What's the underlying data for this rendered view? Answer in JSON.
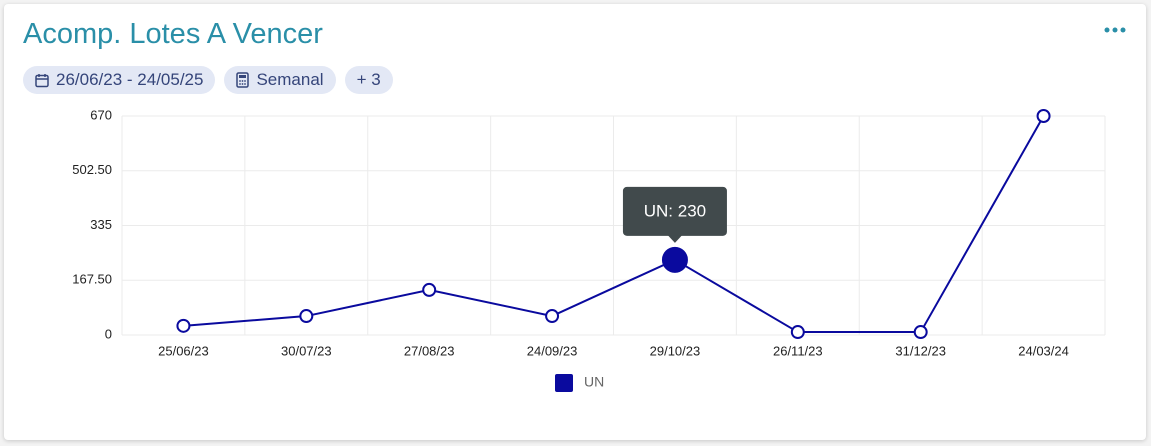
{
  "header": {
    "title": "Acomp. Lotes A Vencer",
    "filters": [
      "26/06/23 - 24/05/25",
      "Semanal",
      "+ 3"
    ]
  },
  "chart_data": {
    "type": "line",
    "categories": [
      "25/06/23",
      "30/07/23",
      "27/08/23",
      "24/09/23",
      "29/10/23",
      "26/11/23",
      "31/12/23",
      "24/03/24"
    ],
    "series": [
      {
        "name": "UN",
        "color": "#0a0a9e",
        "values": [
          28,
          58,
          138,
          58,
          230,
          9,
          9,
          670
        ]
      }
    ],
    "ylim": [
      0,
      670
    ],
    "yticks": [
      0,
      {
        "value": 167.5,
        "label": "167.50"
      },
      335,
      {
        "value": 502.5,
        "label": "502.50"
      },
      670
    ],
    "grid": true,
    "legend": "bottom",
    "tooltip": {
      "text": "UN: 230",
      "point": 4
    }
  }
}
